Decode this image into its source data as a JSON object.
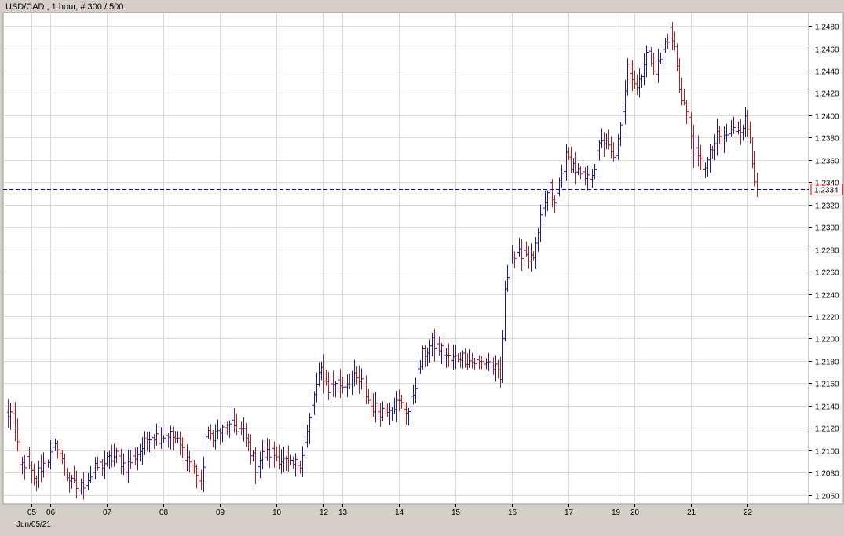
{
  "header": {
    "title": "USD/CAD , 1 hour, # 300 / 500"
  },
  "current_price_label": "1.2334",
  "date_label": "Jun/05/21",
  "colors": {
    "background": "#ffffff",
    "frame": "#d4d0c8",
    "grid": "#d9d9d9",
    "up": "#1a1aa0",
    "down": "#b02020",
    "price_line": "#0000cc",
    "price_box_border": "#cc0000",
    "text": "#000000"
  },
  "chart_data": {
    "type": "ohlc",
    "symbol": "USD/CAD",
    "timeframe": "1 hour",
    "bars_shown": 300,
    "bars_total": 500,
    "current_price": 1.2334,
    "ylim": [
      1.2052,
      1.2492
    ],
    "grid": true,
    "y_ticks": [
      1.206,
      1.208,
      1.21,
      1.212,
      1.214,
      1.216,
      1.218,
      1.22,
      1.222,
      1.224,
      1.226,
      1.228,
      1.23,
      1.232,
      1.234,
      1.236,
      1.238,
      1.24,
      1.242,
      1.244,
      1.246,
      1.248
    ],
    "y_tick_labels": [
      "1.2060",
      "1.2080",
      "1.2100",
      "1.2120",
      "1.2140",
      "1.2160",
      "1.2180",
      "1.2200",
      "1.2220",
      "1.2240",
      "1.2260",
      "1.2280",
      "1.2300",
      "1.2320",
      "1.2340",
      "1.2360",
      "1.2380",
      "1.2400",
      "1.2420",
      "1.2440",
      "1.2460",
      "1.2480"
    ],
    "x_ticks": [
      {
        "label": "05",
        "bar": 10
      },
      {
        "label": "06",
        "bar": 18
      },
      {
        "label": "07",
        "bar": 42
      },
      {
        "label": "08",
        "bar": 66
      },
      {
        "label": "09",
        "bar": 90
      },
      {
        "label": "10",
        "bar": 114
      },
      {
        "label": "12",
        "bar": 134
      },
      {
        "label": "13",
        "bar": 142
      },
      {
        "label": "14",
        "bar": 166
      },
      {
        "label": "15",
        "bar": 190
      },
      {
        "label": "16",
        "bar": 214
      },
      {
        "label": "17",
        "bar": 238
      },
      {
        "label": "19",
        "bar": 258
      },
      {
        "label": "20",
        "bar": 266
      },
      {
        "label": "21",
        "bar": 290
      },
      {
        "label": "22",
        "bar": 314
      }
    ],
    "anchors": [
      [
        0,
        1.213
      ],
      [
        2,
        1.2135
      ],
      [
        5,
        1.2085
      ],
      [
        8,
        1.209
      ],
      [
        11,
        1.2072
      ],
      [
        14,
        1.2085
      ],
      [
        18,
        1.2095
      ],
      [
        21,
        1.2105
      ],
      [
        24,
        1.2082
      ],
      [
        27,
        1.207
      ],
      [
        30,
        1.2065
      ],
      [
        34,
        1.2075
      ],
      [
        38,
        1.2085
      ],
      [
        42,
        1.209
      ],
      [
        46,
        1.2095
      ],
      [
        50,
        1.2085
      ],
      [
        54,
        1.2095
      ],
      [
        58,
        1.2105
      ],
      [
        60,
        1.2115
      ],
      [
        64,
        1.2112
      ],
      [
        68,
        1.2115
      ],
      [
        71,
        1.211
      ],
      [
        74,
        1.21
      ],
      [
        77,
        1.209
      ],
      [
        80,
        1.208
      ],
      [
        82,
        1.2065
      ],
      [
        84,
        1.2112
      ],
      [
        88,
        1.2115
      ],
      [
        92,
        1.2118
      ],
      [
        96,
        1.2122
      ],
      [
        100,
        1.2115
      ],
      [
        103,
        1.21
      ],
      [
        105,
        1.2085
      ],
      [
        108,
        1.2095
      ],
      [
        112,
        1.2098
      ],
      [
        116,
        1.2092
      ],
      [
        120,
        1.2085
      ],
      [
        124,
        1.209
      ],
      [
        127,
        1.2115
      ],
      [
        130,
        1.215
      ],
      [
        133,
        1.2172
      ],
      [
        136,
        1.2155
      ],
      [
        139,
        1.2162
      ],
      [
        142,
        1.2158
      ],
      [
        146,
        1.2165
      ],
      [
        150,
        1.216
      ],
      [
        154,
        1.214
      ],
      [
        158,
        1.2135
      ],
      [
        162,
        1.214
      ],
      [
        166,
        1.2142
      ],
      [
        170,
        1.2135
      ],
      [
        173,
        1.216
      ],
      [
        176,
        1.2185
      ],
      [
        180,
        1.2195
      ],
      [
        184,
        1.219
      ],
      [
        188,
        1.218
      ],
      [
        192,
        1.2185
      ],
      [
        196,
        1.218
      ],
      [
        200,
        1.2178
      ],
      [
        204,
        1.218
      ],
      [
        207,
        1.2172
      ],
      [
        209,
        1.2162
      ],
      [
        211,
        1.224
      ],
      [
        213,
        1.2275
      ],
      [
        216,
        1.2272
      ],
      [
        219,
        1.228
      ],
      [
        222,
        1.227
      ],
      [
        224,
        1.228
      ],
      [
        226,
        1.2305
      ],
      [
        228,
        1.2322
      ],
      [
        230,
        1.2335
      ],
      [
        232,
        1.2318
      ],
      [
        234,
        1.234
      ],
      [
        237,
        1.2362
      ],
      [
        240,
        1.2355
      ],
      [
        243,
        1.2345
      ],
      [
        246,
        1.2342
      ],
      [
        249,
        1.2355
      ],
      [
        252,
        1.238
      ],
      [
        255,
        1.237
      ],
      [
        257,
        1.236
      ],
      [
        259,
        1.2375
      ],
      [
        261,
        1.24
      ],
      [
        263,
        1.245
      ],
      [
        265,
        1.2435
      ],
      [
        267,
        1.2425
      ],
      [
        269,
        1.244
      ],
      [
        271,
        1.2455
      ],
      [
        273,
        1.245
      ],
      [
        275,
        1.244
      ],
      [
        277,
        1.245
      ],
      [
        279,
        1.2465
      ],
      [
        281,
        1.2475
      ],
      [
        283,
        1.246
      ],
      [
        285,
        1.2425
      ],
      [
        287,
        1.241
      ],
      [
        289,
        1.2395
      ],
      [
        291,
        1.237
      ],
      [
        293,
        1.236
      ],
      [
        295,
        1.2355
      ],
      [
        297,
        1.2358
      ],
      [
        299,
        1.237
      ],
      [
        301,
        1.238
      ],
      [
        303,
        1.2378
      ],
      [
        305,
        1.2382
      ],
      [
        307,
        1.2385
      ],
      [
        309,
        1.2388
      ],
      [
        311,
        1.239
      ],
      [
        313,
        1.2395
      ],
      [
        315,
        1.238
      ],
      [
        317,
        1.2345
      ],
      [
        318,
        1.2334
      ]
    ]
  }
}
